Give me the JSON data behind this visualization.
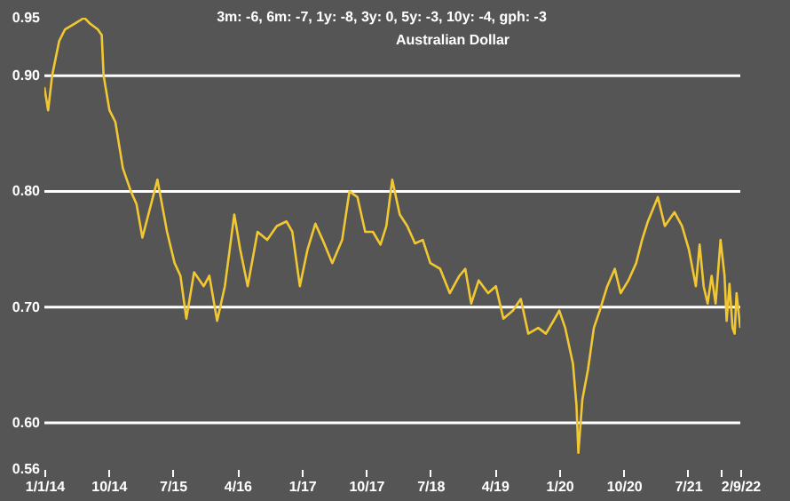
{
  "chart_data": {
    "type": "line",
    "title": "Australian Dollar",
    "annotations": [
      "3m: -6,   6m: -7,   1y: -8,   3y: 0,   5y: -3,   10y: -4,   gph: -3"
    ],
    "x": [
      "2014-01-01",
      "2014-01-17",
      "2014-02-03",
      "2014-03-05",
      "2014-03-30",
      "2014-05-10",
      "2014-06-20",
      "2014-07-14",
      "2014-08-16",
      "2014-09-02",
      "2014-09-10",
      "2014-10-05",
      "2014-10-30",
      "2014-12-01",
      "2015-01-04",
      "2015-01-28",
      "2015-02-22",
      "2015-04-27",
      "2015-06-07",
      "2015-07-09",
      "2015-08-03",
      "2015-08-28",
      "2015-09-30",
      "2015-11-10",
      "2015-12-04",
      "2016-01-06",
      "2016-02-08",
      "2016-03-19",
      "2016-04-13",
      "2016-05-15",
      "2016-06-26",
      "2016-08-06",
      "2016-09-16",
      "2016-10-27",
      "2016-11-21",
      "2016-12-23",
      "2017-01-25",
      "2017-02-27",
      "2017-03-30",
      "2017-05-10",
      "2017-06-21",
      "2017-07-22",
      "2017-08-25",
      "2017-09-27",
      "2017-10-30",
      "2017-12-01",
      "2017-12-26",
      "2018-01-20",
      "2018-02-21",
      "2018-03-25",
      "2018-04-27",
      "2018-05-30",
      "2018-07-01",
      "2018-08-12",
      "2018-09-22",
      "2018-11-02",
      "2018-11-27",
      "2018-12-22",
      "2019-01-23",
      "2019-03-04",
      "2019-04-06",
      "2019-05-08",
      "2019-06-18",
      "2019-07-21",
      "2019-08-22",
      "2019-10-03",
      "2019-11-05",
      "2019-12-07",
      "2020-01-01",
      "2020-01-26",
      "2020-02-28",
      "2020-03-14",
      "2020-03-22",
      "2020-04-08",
      "2020-05-02",
      "2020-05-27",
      "2020-06-21",
      "2020-07-23",
      "2020-08-24",
      "2020-09-18",
      "2020-10-21",
      "2020-11-23",
      "2020-12-18",
      "2021-01-12",
      "2021-02-23",
      "2021-03-25",
      "2021-05-05",
      "2021-06-06",
      "2021-07-05",
      "2021-07-21",
      "2021-08-04",
      "2021-08-20",
      "2021-09-06",
      "2021-09-23",
      "2021-10-10",
      "2021-10-27",
      "2021-11-17",
      "2021-12-04",
      "2021-12-13",
      "2021-12-25",
      "2022-01-07",
      "2022-01-16",
      "2022-01-24",
      "2022-02-09"
    ],
    "series": [
      {
        "color": "#f2c832",
        "values": [
          0.89,
          0.87,
          0.9,
          0.93,
          0.94,
          0.945,
          0.95,
          0.945,
          0.94,
          0.935,
          0.9,
          0.87,
          0.86,
          0.82,
          0.8,
          0.789,
          0.76,
          0.81,
          0.765,
          0.738,
          0.727,
          0.69,
          0.73,
          0.718,
          0.727,
          0.688,
          0.718,
          0.78,
          0.75,
          0.718,
          0.765,
          0.758,
          0.77,
          0.774,
          0.765,
          0.718,
          0.75,
          0.772,
          0.758,
          0.738,
          0.758,
          0.8,
          0.795,
          0.765,
          0.765,
          0.754,
          0.77,
          0.81,
          0.78,
          0.77,
          0.755,
          0.758,
          0.738,
          0.733,
          0.712,
          0.727,
          0.733,
          0.703,
          0.723,
          0.712,
          0.718,
          0.69,
          0.697,
          0.707,
          0.677,
          0.682,
          0.677,
          0.688,
          0.697,
          0.682,
          0.651,
          0.615,
          0.574,
          0.62,
          0.646,
          0.682,
          0.697,
          0.718,
          0.733,
          0.712,
          0.723,
          0.738,
          0.758,
          0.774,
          0.795,
          0.77,
          0.782,
          0.77,
          0.75,
          0.733,
          0.718,
          0.754,
          0.718,
          0.703,
          0.727,
          0.703,
          0.758,
          0.727,
          0.688,
          0.72,
          0.682,
          0.677,
          0.712,
          0.682
        ]
      }
    ],
    "xlim": [
      "2014-01-01",
      "2022-02-09"
    ],
    "xticks": [
      {
        "value": "2014-01-01",
        "label": "1/1/14"
      },
      {
        "value": "2014-10-01",
        "label": "10/14"
      },
      {
        "value": "2015-07-01",
        "label": "7/15"
      },
      {
        "value": "2016-04-01",
        "label": "4/16"
      },
      {
        "value": "2017-01-01",
        "label": "1/17"
      },
      {
        "value": "2017-10-01",
        "label": "10/17"
      },
      {
        "value": "2018-07-01",
        "label": "7/18"
      },
      {
        "value": "2019-04-01",
        "label": "4/19"
      },
      {
        "value": "2020-01-01",
        "label": "1/20"
      },
      {
        "value": "2020-10-01",
        "label": "10/20"
      },
      {
        "value": "2021-07-01",
        "label": "7/21"
      },
      {
        "value": "2021-11-21",
        "label": null
      },
      {
        "value": "2022-02-09",
        "label": "2/9/22"
      }
    ],
    "ylim": [
      0.56,
      0.95
    ],
    "yticks": [
      0.56,
      {
        "value": 0.6,
        "label": "0.60"
      },
      {
        "value": 0.7,
        "label": "0.70"
      },
      {
        "value": 0.8,
        "label": "0.80"
      },
      {
        "value": 0.9,
        "label": "0.90"
      },
      0.95
    ],
    "ref_lines": [
      {
        "axis": "y",
        "value": 0.6,
        "color": "#ffffff"
      },
      {
        "axis": "y",
        "value": 0.7,
        "color": "#ffffff"
      },
      {
        "axis": "y",
        "value": 0.8,
        "color": "#ffffff"
      },
      {
        "axis": "y",
        "value": 0.9,
        "color": "#ffffff"
      }
    ]
  }
}
